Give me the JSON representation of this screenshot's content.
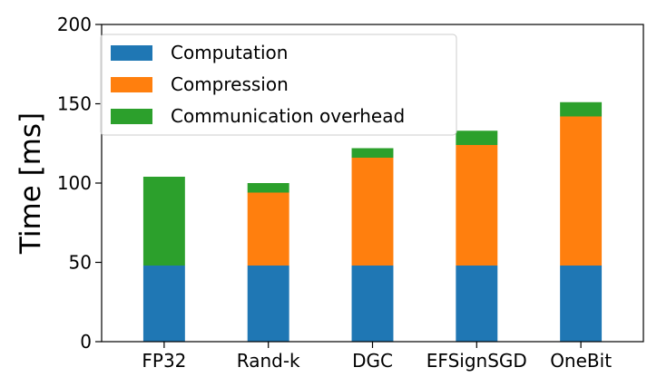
{
  "chart_data": {
    "type": "bar",
    "stacked": true,
    "categories": [
      "FP32",
      "Rand-k",
      "DGC",
      "EFSignSGD",
      "OneBit"
    ],
    "series": [
      {
        "name": "Computation",
        "color": "#1f77b4",
        "values": [
          48,
          48,
          48,
          48,
          48
        ]
      },
      {
        "name": "Compression",
        "color": "#ff7f0e",
        "values": [
          0,
          46,
          68,
          76,
          94
        ]
      },
      {
        "name": "Communication overhead",
        "color": "#2ca02c",
        "values": [
          56,
          6,
          6,
          9,
          9
        ]
      }
    ],
    "title": "",
    "xlabel": "",
    "ylabel": "Time [ms]",
    "ylim": [
      0,
      200
    ],
    "yticks": [
      0,
      50,
      100,
      150,
      200
    ],
    "grid": false,
    "legend_position": "top-left"
  }
}
